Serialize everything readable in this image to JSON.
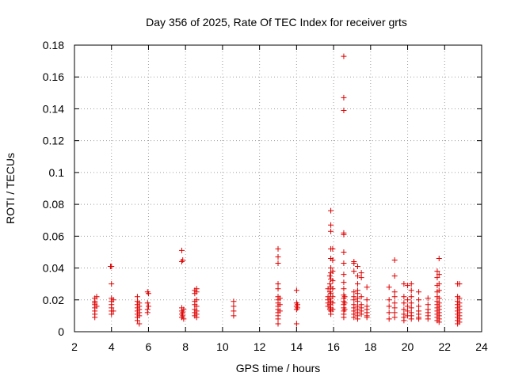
{
  "chart_data": {
    "type": "scatter",
    "title": "Day 356 of 2025, Rate Of TEC Index for receiver grts",
    "xlabel": "GPS time / hours",
    "ylabel": "ROTI / TECUs",
    "xlim": [
      2,
      24
    ],
    "ylim": [
      0,
      0.18
    ],
    "grid": true,
    "marker": "+",
    "color": "#e00000",
    "x_ticks": [
      "2",
      "4",
      "6",
      "8",
      "10",
      "12",
      "14",
      "16",
      "18",
      "20",
      "22",
      "24"
    ],
    "y_ticks": [
      "0",
      "0.02",
      "0.04",
      "0.06",
      "0.08",
      "0.1",
      "0.12",
      "0.14",
      "0.16",
      "0.18"
    ],
    "points": [
      [
        3.1,
        0.021
      ],
      [
        3.1,
        0.019
      ],
      [
        3.1,
        0.018
      ],
      [
        3.1,
        0.017
      ],
      [
        3.1,
        0.015
      ],
      [
        3.1,
        0.013
      ],
      [
        3.1,
        0.011
      ],
      [
        3.1,
        0.009
      ],
      [
        3.2,
        0.022
      ],
      [
        3.2,
        0.016
      ],
      [
        3.95,
        0.041
      ],
      [
        4.0,
        0.041
      ],
      [
        4.0,
        0.03
      ],
      [
        4.0,
        0.021
      ],
      [
        4.0,
        0.019
      ],
      [
        4.0,
        0.017
      ],
      [
        4.0,
        0.015
      ],
      [
        4.0,
        0.013
      ],
      [
        4.0,
        0.011
      ],
      [
        4.1,
        0.02
      ],
      [
        4.1,
        0.013
      ],
      [
        5.4,
        0.022
      ],
      [
        5.4,
        0.019
      ],
      [
        5.4,
        0.017
      ],
      [
        5.4,
        0.015
      ],
      [
        5.4,
        0.013
      ],
      [
        5.4,
        0.011
      ],
      [
        5.4,
        0.009
      ],
      [
        5.4,
        0.007
      ],
      [
        5.5,
        0.018
      ],
      [
        5.5,
        0.016
      ],
      [
        5.5,
        0.014
      ],
      [
        5.5,
        0.012
      ],
      [
        5.5,
        0.01
      ],
      [
        5.5,
        0.005
      ],
      [
        5.95,
        0.025
      ],
      [
        5.95,
        0.018
      ],
      [
        5.95,
        0.014
      ],
      [
        5.95,
        0.012
      ],
      [
        6.0,
        0.024
      ],
      [
        6.0,
        0.016
      ],
      [
        7.8,
        0.051
      ],
      [
        7.8,
        0.044
      ],
      [
        7.8,
        0.015
      ],
      [
        7.8,
        0.013
      ],
      [
        7.8,
        0.011
      ],
      [
        7.8,
        0.009
      ],
      [
        7.85,
        0.045
      ],
      [
        7.85,
        0.012
      ],
      [
        7.85,
        0.01
      ],
      [
        7.9,
        0.014
      ],
      [
        7.9,
        0.008
      ],
      [
        8.5,
        0.026
      ],
      [
        8.5,
        0.024
      ],
      [
        8.5,
        0.019
      ],
      [
        8.5,
        0.017
      ],
      [
        8.5,
        0.014
      ],
      [
        8.5,
        0.012
      ],
      [
        8.5,
        0.01
      ],
      [
        8.6,
        0.027
      ],
      [
        8.6,
        0.025
      ],
      [
        8.6,
        0.02
      ],
      [
        8.6,
        0.016
      ],
      [
        8.6,
        0.013
      ],
      [
        8.6,
        0.011
      ],
      [
        8.6,
        0.009
      ],
      [
        10.6,
        0.019
      ],
      [
        10.6,
        0.016
      ],
      [
        10.6,
        0.013
      ],
      [
        10.6,
        0.01
      ],
      [
        13.0,
        0.052
      ],
      [
        13.0,
        0.047
      ],
      [
        13.0,
        0.043
      ],
      [
        13.0,
        0.03
      ],
      [
        13.0,
        0.027
      ],
      [
        13.0,
        0.022
      ],
      [
        13.0,
        0.02
      ],
      [
        13.0,
        0.018
      ],
      [
        13.0,
        0.016
      ],
      [
        13.0,
        0.014
      ],
      [
        13.0,
        0.012
      ],
      [
        13.0,
        0.01
      ],
      [
        13.0,
        0.008
      ],
      [
        13.0,
        0.005
      ],
      [
        13.1,
        0.021
      ],
      [
        13.1,
        0.017
      ],
      [
        13.1,
        0.013
      ],
      [
        14.0,
        0.026
      ],
      [
        14.0,
        0.018
      ],
      [
        14.0,
        0.016
      ],
      [
        14.0,
        0.014
      ],
      [
        14.0,
        0.005
      ],
      [
        14.05,
        0.017
      ],
      [
        14.05,
        0.015
      ],
      [
        15.7,
        0.027
      ],
      [
        15.7,
        0.022
      ],
      [
        15.7,
        0.02
      ],
      [
        15.7,
        0.018
      ],
      [
        15.7,
        0.016
      ],
      [
        15.8,
        0.035
      ],
      [
        15.8,
        0.03
      ],
      [
        15.8,
        0.025
      ],
      [
        15.8,
        0.021
      ],
      [
        15.8,
        0.017
      ],
      [
        15.8,
        0.014
      ],
      [
        15.85,
        0.076
      ],
      [
        15.85,
        0.067
      ],
      [
        15.85,
        0.063
      ],
      [
        15.85,
        0.052
      ],
      [
        15.85,
        0.046
      ],
      [
        15.85,
        0.04
      ],
      [
        15.85,
        0.037
      ],
      [
        15.85,
        0.033
      ],
      [
        15.85,
        0.028
      ],
      [
        15.85,
        0.024
      ],
      [
        15.85,
        0.019
      ],
      [
        15.85,
        0.015
      ],
      [
        15.85,
        0.013
      ],
      [
        15.85,
        0.011
      ],
      [
        15.95,
        0.052
      ],
      [
        15.95,
        0.045
      ],
      [
        15.95,
        0.038
      ],
      [
        15.95,
        0.032
      ],
      [
        15.95,
        0.027
      ],
      [
        15.95,
        0.022
      ],
      [
        15.95,
        0.018
      ],
      [
        15.95,
        0.014
      ],
      [
        16.55,
        0.173
      ],
      [
        16.55,
        0.147
      ],
      [
        16.55,
        0.139
      ],
      [
        16.55,
        0.062
      ],
      [
        16.55,
        0.061
      ],
      [
        16.55,
        0.05
      ],
      [
        16.55,
        0.043
      ],
      [
        16.55,
        0.036
      ],
      [
        16.55,
        0.031
      ],
      [
        16.55,
        0.027
      ],
      [
        16.55,
        0.023
      ],
      [
        16.55,
        0.021
      ],
      [
        16.55,
        0.019
      ],
      [
        16.55,
        0.017
      ],
      [
        16.55,
        0.015
      ],
      [
        16.55,
        0.013
      ],
      [
        16.55,
        0.011
      ],
      [
        16.55,
        0.009
      ],
      [
        16.6,
        0.022
      ],
      [
        16.6,
        0.018
      ],
      [
        16.6,
        0.014
      ],
      [
        17.1,
        0.044
      ],
      [
        17.1,
        0.043
      ],
      [
        17.1,
        0.038
      ],
      [
        17.1,
        0.025
      ],
      [
        17.1,
        0.022
      ],
      [
        17.1,
        0.02
      ],
      [
        17.1,
        0.017
      ],
      [
        17.1,
        0.015
      ],
      [
        17.1,
        0.013
      ],
      [
        17.1,
        0.011
      ],
      [
        17.1,
        0.009
      ],
      [
        17.3,
        0.041
      ],
      [
        17.3,
        0.035
      ],
      [
        17.3,
        0.03
      ],
      [
        17.3,
        0.026
      ],
      [
        17.3,
        0.024
      ],
      [
        17.3,
        0.021
      ],
      [
        17.3,
        0.019
      ],
      [
        17.3,
        0.016
      ],
      [
        17.3,
        0.014
      ],
      [
        17.3,
        0.012
      ],
      [
        17.3,
        0.01
      ],
      [
        17.3,
        0.008
      ],
      [
        17.5,
        0.037
      ],
      [
        17.5,
        0.034
      ],
      [
        17.5,
        0.022
      ],
      [
        17.5,
        0.017
      ],
      [
        17.5,
        0.015
      ],
      [
        17.5,
        0.013
      ],
      [
        17.5,
        0.011
      ],
      [
        17.8,
        0.028
      ],
      [
        17.8,
        0.02
      ],
      [
        17.8,
        0.016
      ],
      [
        17.8,
        0.014
      ],
      [
        17.8,
        0.012
      ],
      [
        17.8,
        0.01
      ],
      [
        17.8,
        0.009
      ],
      [
        19.0,
        0.028
      ],
      [
        19.0,
        0.02
      ],
      [
        19.0,
        0.016
      ],
      [
        19.0,
        0.012
      ],
      [
        19.0,
        0.008
      ],
      [
        19.3,
        0.045
      ],
      [
        19.3,
        0.035
      ],
      [
        19.3,
        0.025
      ],
      [
        19.3,
        0.022
      ],
      [
        19.3,
        0.018
      ],
      [
        19.3,
        0.015
      ],
      [
        19.3,
        0.012
      ],
      [
        19.3,
        0.009
      ],
      [
        19.8,
        0.03
      ],
      [
        19.8,
        0.022
      ],
      [
        19.8,
        0.018
      ],
      [
        19.8,
        0.014
      ],
      [
        19.8,
        0.011
      ],
      [
        19.8,
        0.009
      ],
      [
        19.8,
        0.007
      ],
      [
        20.0,
        0.029
      ],
      [
        20.0,
        0.02
      ],
      [
        20.0,
        0.016
      ],
      [
        20.0,
        0.013
      ],
      [
        20.0,
        0.01
      ],
      [
        20.2,
        0.03
      ],
      [
        20.2,
        0.026
      ],
      [
        20.2,
        0.022
      ],
      [
        20.2,
        0.018
      ],
      [
        20.2,
        0.015
      ],
      [
        20.2,
        0.012
      ],
      [
        20.2,
        0.01
      ],
      [
        20.2,
        0.008
      ],
      [
        20.6,
        0.025
      ],
      [
        20.6,
        0.02
      ],
      [
        20.6,
        0.016
      ],
      [
        20.6,
        0.013
      ],
      [
        20.6,
        0.011
      ],
      [
        20.6,
        0.009
      ],
      [
        20.6,
        0.008
      ],
      [
        21.1,
        0.021
      ],
      [
        21.1,
        0.017
      ],
      [
        21.1,
        0.014
      ],
      [
        21.1,
        0.012
      ],
      [
        21.1,
        0.01
      ],
      [
        21.1,
        0.008
      ],
      [
        21.6,
        0.038
      ],
      [
        21.6,
        0.034
      ],
      [
        21.6,
        0.029
      ],
      [
        21.6,
        0.025
      ],
      [
        21.6,
        0.022
      ],
      [
        21.6,
        0.019
      ],
      [
        21.6,
        0.017
      ],
      [
        21.6,
        0.015
      ],
      [
        21.6,
        0.013
      ],
      [
        21.6,
        0.011
      ],
      [
        21.6,
        0.009
      ],
      [
        21.6,
        0.007
      ],
      [
        21.7,
        0.046
      ],
      [
        21.7,
        0.036
      ],
      [
        21.7,
        0.03
      ],
      [
        21.7,
        0.026
      ],
      [
        21.7,
        0.021
      ],
      [
        21.7,
        0.018
      ],
      [
        21.7,
        0.016
      ],
      [
        21.7,
        0.014
      ],
      [
        21.7,
        0.012
      ],
      [
        21.7,
        0.01
      ],
      [
        21.7,
        0.008
      ],
      [
        21.7,
        0.006
      ],
      [
        22.7,
        0.03
      ],
      [
        22.7,
        0.022
      ],
      [
        22.7,
        0.019
      ],
      [
        22.7,
        0.017
      ],
      [
        22.7,
        0.015
      ],
      [
        22.7,
        0.013
      ],
      [
        22.7,
        0.011
      ],
      [
        22.7,
        0.009
      ],
      [
        22.7,
        0.007
      ],
      [
        22.7,
        0.005
      ],
      [
        22.8,
        0.03
      ],
      [
        22.8,
        0.021
      ],
      [
        22.8,
        0.018
      ],
      [
        22.8,
        0.016
      ],
      [
        22.8,
        0.014
      ],
      [
        22.8,
        0.012
      ],
      [
        22.8,
        0.01
      ],
      [
        22.8,
        0.008
      ],
      [
        22.8,
        0.006
      ]
    ]
  }
}
